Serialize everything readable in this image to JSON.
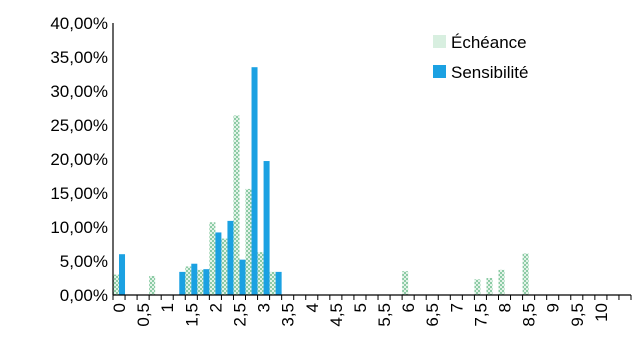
{
  "chart_data": {
    "type": "bar",
    "title": "",
    "xlabel": "",
    "ylabel": "",
    "ylim": [
      0,
      0.4
    ],
    "y_ticks": [
      {
        "value": 0.0,
        "label": "0,00%"
      },
      {
        "value": 0.05,
        "label": "5,00%"
      },
      {
        "value": 0.1,
        "label": "10,00%"
      },
      {
        "value": 0.15,
        "label": "15,00%"
      },
      {
        "value": 0.2,
        "label": "20,00%"
      },
      {
        "value": 0.25,
        "label": "25,00%"
      },
      {
        "value": 0.3,
        "label": "30,00%"
      },
      {
        "value": 0.35,
        "label": "35,00%"
      },
      {
        "value": 0.4,
        "label": "40,00%"
      }
    ],
    "categories": [
      "0",
      "0,25",
      "0,5",
      "0,75",
      "1",
      "1,25",
      "1,5",
      "1,75",
      "2",
      "2,25",
      "2,5",
      "2,75",
      "3",
      "3,25",
      "3,5",
      "3,75",
      "4",
      "4,25",
      "4,5",
      "4,75",
      "5",
      "5,25",
      "5,5",
      "5,75",
      "6",
      "6,25",
      "6,5",
      "6,75",
      "7",
      "7,25",
      "7,5",
      "7,75",
      "8",
      "8,25",
      "8,5",
      "8,75",
      "9",
      "9,25",
      "9,5",
      "9,75",
      "10",
      "10,25",
      "10,5"
    ],
    "x_tick_labels": [
      "0",
      "0,5",
      "1",
      "1,5",
      "2",
      "2,5",
      "3",
      "3,5",
      "4",
      "4,5",
      "5",
      "5,5",
      "6",
      "6,5",
      "7",
      "7,5",
      "8",
      "8,5",
      "9",
      "9,5",
      "10"
    ],
    "grid": false,
    "legend_position": "top-right",
    "series": [
      {
        "name": "Échéance",
        "color": "#9fd3b4",
        "pattern": "checker",
        "values": [
          0.03,
          0,
          0,
          0.028,
          0,
          0,
          0.042,
          0.037,
          0.107,
          0.083,
          0.264,
          0.156,
          0.063,
          0.034,
          0,
          0,
          0,
          0,
          0,
          0,
          0,
          0,
          0,
          0,
          0.035,
          0,
          0,
          0,
          0,
          0,
          0.023,
          0.025,
          0.037,
          0,
          0.061,
          0,
          0,
          0,
          0,
          0,
          0,
          0,
          0
        ]
      },
      {
        "name": "Sensibilité",
        "color": "#1ba1e2",
        "pattern": "solid",
        "values": [
          0.06,
          0,
          0,
          0,
          0,
          0.034,
          0.046,
          0.038,
          0.092,
          0.109,
          0.052,
          0.335,
          0.197,
          0.034,
          0,
          0,
          0,
          0,
          0,
          0,
          0,
          0,
          0,
          0,
          0,
          0,
          0,
          0,
          0,
          0,
          0,
          0,
          0,
          0,
          0,
          0,
          0,
          0,
          0,
          0,
          0,
          0,
          0
        ]
      }
    ]
  }
}
